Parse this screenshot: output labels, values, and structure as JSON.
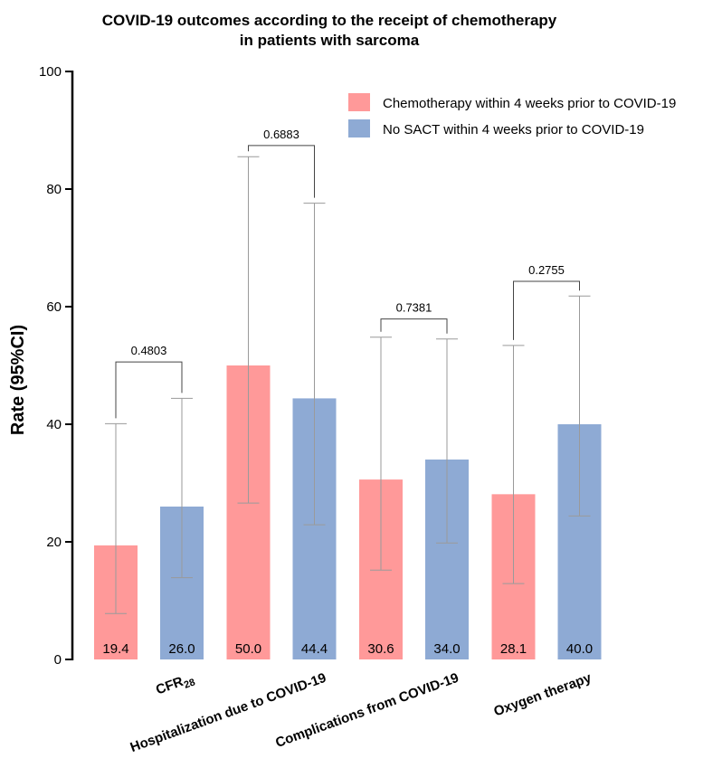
{
  "chart_data": {
    "type": "bar",
    "title_lines": [
      "COVID-19 outcomes according to the receipt of chemotherapy",
      "in patients with sarcoma"
    ],
    "ylabel": "Rate (95%CI)",
    "ylim": [
      0,
      100
    ],
    "yticks": [
      0,
      20,
      40,
      60,
      80,
      100
    ],
    "categories": [
      {
        "main": "CFR",
        "sub": "28"
      },
      {
        "main": "Hospitalization due to COVID-19",
        "sub": ""
      },
      {
        "main": "Complications from COVID-19",
        "sub": ""
      },
      {
        "main": "Oxygen therapy",
        "sub": ""
      }
    ],
    "series": [
      {
        "name": "Chemotherapy within 4 weeks prior to COVID-19",
        "color": "#ff9999",
        "values": [
          19.4,
          50.0,
          30.6,
          28.1
        ],
        "value_labels": [
          "19.4",
          "50.0",
          "30.6",
          "28.1"
        ],
        "ci_low": [
          7.8,
          26.6,
          15.2,
          12.9
        ],
        "ci_high": [
          40.1,
          85.5,
          54.8,
          53.4
        ]
      },
      {
        "name": "No SACT within 4 weeks prior to COVID-19",
        "color": "#8eaad4",
        "values": [
          26.0,
          44.4,
          34.0,
          40.0
        ],
        "value_labels": [
          "26.0",
          "44.4",
          "34.0",
          "40.0"
        ],
        "ci_low": [
          13.9,
          22.9,
          19.8,
          24.4
        ],
        "ci_high": [
          44.4,
          77.6,
          54.5,
          61.8
        ]
      }
    ],
    "p_values": [
      "0.4803",
      "0.6883",
      "0.7381",
      "0.2755"
    ],
    "p_bracket_level": [
      50.6,
      87.4,
      57.9,
      64.3
    ],
    "legend_position": "top-right",
    "grid": false
  }
}
